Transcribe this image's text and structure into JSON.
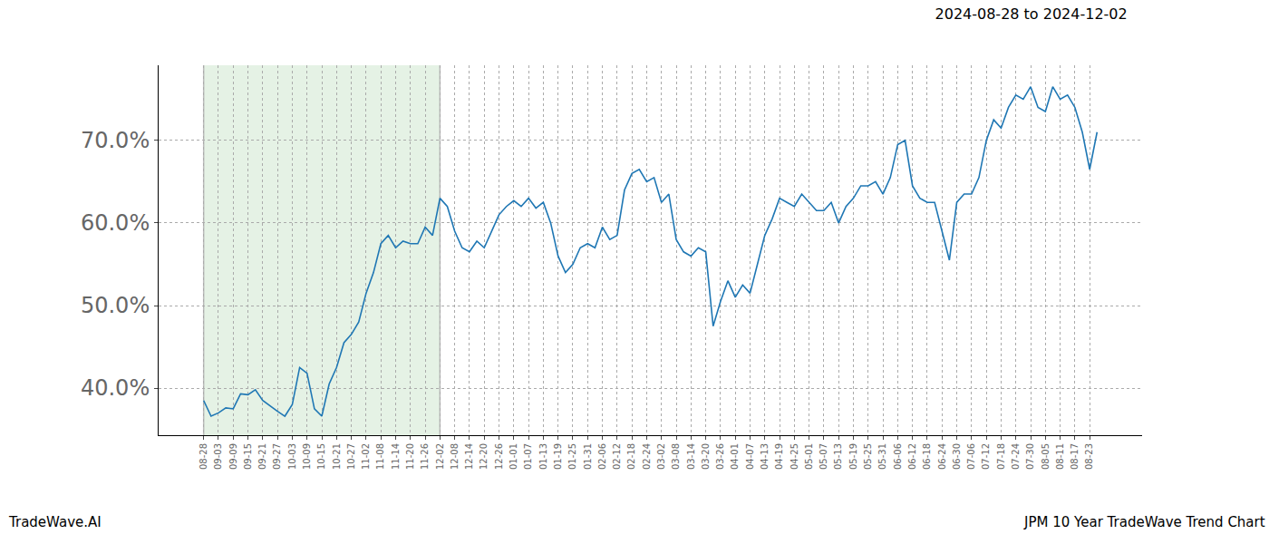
{
  "chart_data": {
    "type": "line",
    "title": "2024-08-28 to 2024-12-02",
    "annotations": [
      {
        "text": "TradeWave.AI"
      },
      {
        "text": "JPM 10 Year TradeWave Trend Chart"
      }
    ],
    "highlight_range": [
      "08-28",
      "12-02"
    ],
    "categories": [
      "08-28",
      null,
      "09-03",
      null,
      "09-09",
      null,
      "09-15",
      null,
      "09-21",
      null,
      "09-27",
      null,
      "10-03",
      null,
      "10-09",
      null,
      "10-15",
      null,
      "10-21",
      null,
      "10-27",
      null,
      "11-02",
      null,
      "11-08",
      null,
      "11-14",
      null,
      "11-20",
      null,
      "11-26",
      null,
      "12-02",
      null,
      "12-08",
      null,
      "12-14",
      null,
      "12-20",
      null,
      "12-26",
      null,
      "01-01",
      null,
      "01-07",
      null,
      "01-13",
      null,
      "01-19",
      null,
      "01-25",
      null,
      "01-31",
      null,
      "02-06",
      null,
      "02-12",
      null,
      "02-18",
      null,
      "02-24",
      null,
      "03-02",
      null,
      "03-08",
      null,
      "03-14",
      null,
      "03-20",
      null,
      "03-26",
      null,
      "04-01",
      null,
      "04-07",
      null,
      "04-13",
      null,
      "04-19",
      null,
      "04-25",
      null,
      "05-01",
      null,
      "05-07",
      null,
      "05-13",
      null,
      "05-19",
      null,
      "05-25",
      null,
      "05-31",
      null,
      "06-06",
      null,
      "06-12",
      null,
      "06-18",
      null,
      "06-24",
      null,
      "06-30",
      null,
      "07-06",
      null,
      "07-12",
      null,
      "07-18",
      null,
      "07-24",
      null,
      "07-30",
      null,
      "08-05",
      null,
      "08-11",
      null,
      "08-17",
      null,
      "08-23",
      null
    ],
    "values": [
      38.5,
      36.6,
      37.0,
      37.6,
      37.5,
      39.3,
      39.2,
      39.8,
      38.5,
      37.8,
      37.2,
      36.6,
      38.0,
      42.5,
      41.8,
      37.5,
      36.6,
      40.5,
      42.5,
      45.5,
      46.5,
      48.0,
      51.5,
      54.0,
      57.5,
      58.5,
      57.0,
      57.8,
      57.5,
      57.5,
      59.5,
      58.5,
      63.0,
      62.0,
      59.0,
      57.0,
      56.5,
      57.8,
      57.0,
      59.0,
      61.0,
      62.0,
      62.7,
      62.0,
      63.0,
      61.8,
      62.5,
      60.0,
      56.0,
      54.0,
      55.0,
      57.0,
      57.5,
      57.0,
      59.5,
      58.0,
      58.5,
      64.0,
      66.0,
      66.5,
      65.0,
      65.5,
      62.5,
      63.5,
      58.0,
      56.5,
      56.0,
      57.0,
      56.5,
      47.5,
      50.5,
      53.0,
      51.0,
      52.5,
      51.5,
      55.0,
      58.5,
      60.5,
      63.0,
      62.5,
      62.0,
      63.5,
      62.5,
      61.5,
      61.5,
      62.5,
      60.0,
      62.0,
      63.0,
      64.5,
      64.5,
      65.0,
      63.5,
      65.5,
      69.5,
      70.0,
      64.5,
      63.0,
      62.5,
      62.5,
      59.0,
      55.5,
      62.5,
      63.5,
      63.5,
      65.5,
      70.0,
      72.5,
      71.5,
      74.0,
      75.5,
      75.0,
      76.5,
      74.0,
      73.5,
      76.5,
      75.0,
      75.5,
      74.0,
      71.0,
      66.5,
      71.0
    ],
    "color": "#1f77b4",
    "ylim": [
      34.3,
      79.1
    ],
    "yticks": [
      {
        "value": 40,
        "label": "40.0%"
      },
      {
        "value": 50,
        "label": "50.0%"
      },
      {
        "value": 60,
        "label": "60.0%"
      },
      {
        "value": 70,
        "label": "70.0%"
      }
    ],
    "grid": true
  }
}
